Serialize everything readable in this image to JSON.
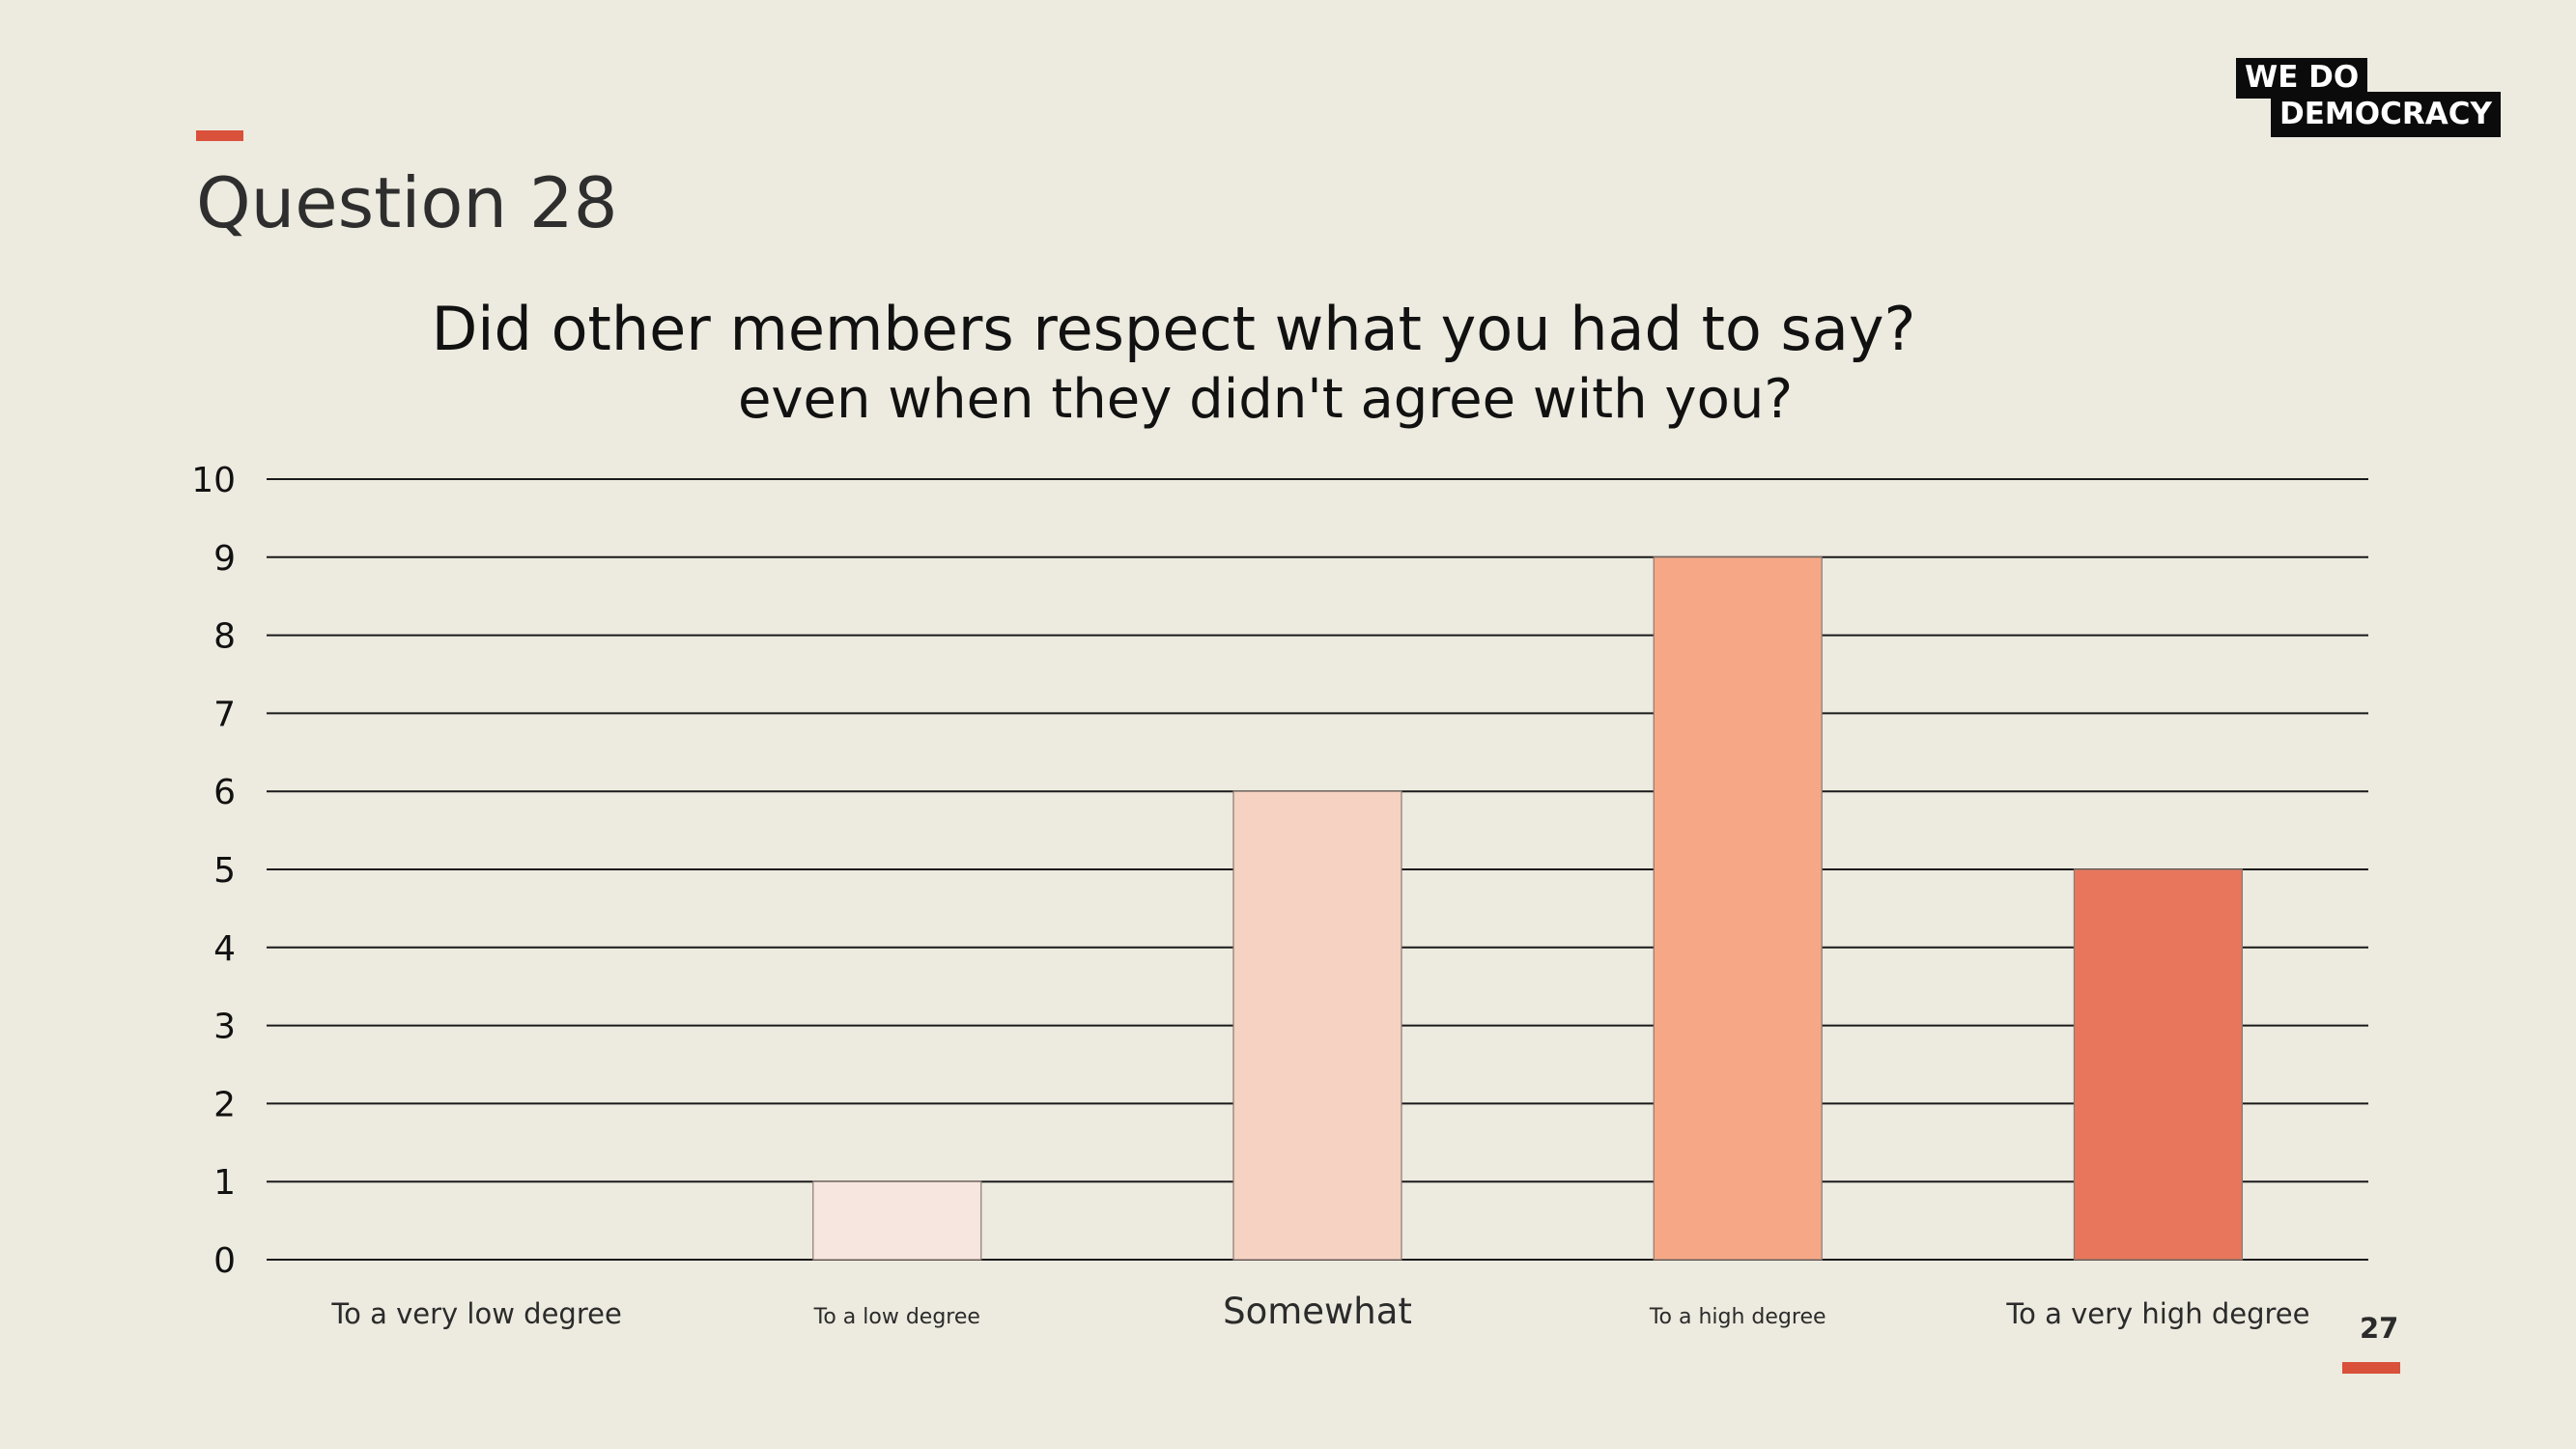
{
  "slide": {
    "title": "Question 28",
    "page_number": "27"
  },
  "logo": {
    "line1": "WE  DO",
    "line2": "DEMOCRACY"
  },
  "colors": {
    "background": "#EDEADF",
    "accent": "#D9503B"
  },
  "chart_data": {
    "type": "bar",
    "title": "Did other members respect what you had to say?",
    "subtitle": "even when they didn't agree with you?",
    "categories": [
      "To a very low degree",
      "To a low degree",
      "Somewhat",
      "To a high degree",
      "To a very high degree"
    ],
    "values": [
      0,
      1,
      6,
      9,
      5
    ],
    "bar_colors": [
      "#F7E6DF",
      "#F7E6DF",
      "#F6D2C2",
      "#F6A886",
      "#E8765C"
    ],
    "ylim": [
      0,
      10
    ],
    "yticks": [
      "0",
      "1",
      "2",
      "3",
      "4",
      "5",
      "6",
      "7",
      "8",
      "9",
      "10"
    ],
    "grid": true,
    "legend": "none"
  }
}
